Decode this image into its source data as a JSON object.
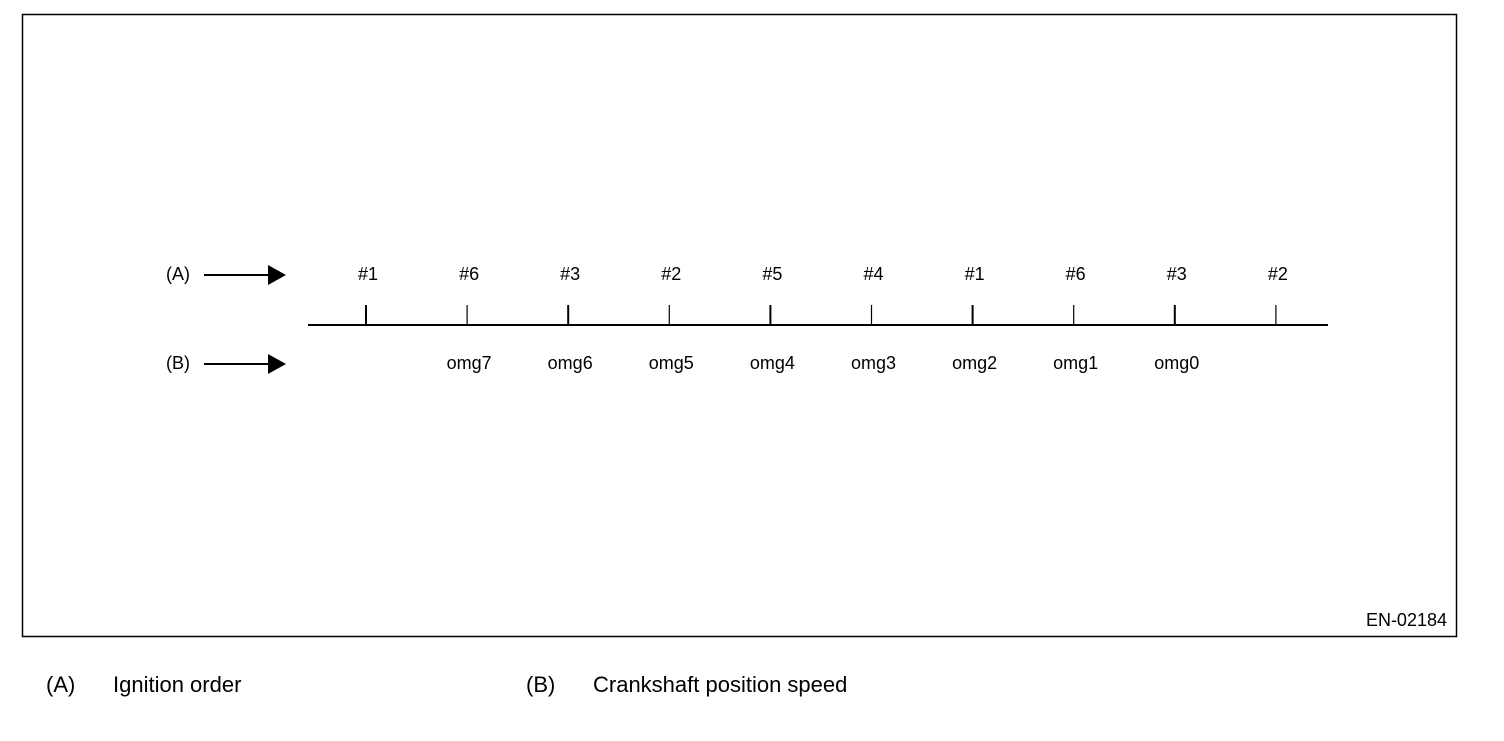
{
  "diagram": {
    "rows": [
      {
        "marker": "(A)",
        "labels": [
          "#1",
          "#6",
          "#3",
          "#2",
          "#5",
          "#4",
          "#1",
          "#6",
          "#3",
          "#2"
        ]
      },
      {
        "marker": "(B)",
        "labels": [
          "omg7",
          "omg6",
          "omg5",
          "omg4",
          "omg3",
          "omg2",
          "omg1",
          "omg0"
        ]
      }
    ],
    "figure_id": "EN-02184"
  },
  "legend": [
    {
      "key": "(A)",
      "text": "Ignition order"
    },
    {
      "key": "(B)",
      "text": "Crankshaft position speed"
    }
  ]
}
